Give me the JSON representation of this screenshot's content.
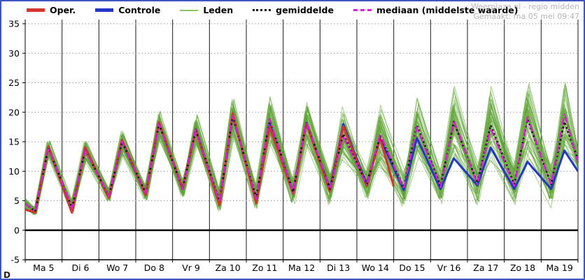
{
  "header": {
    "source": "Weerplaza.nl - regio midden",
    "generated": "Gemaakt: ma 05 mei 09:47"
  },
  "footer": {
    "cropped": "D"
  },
  "legend": [
    {
      "label": "Oper.",
      "color": "#d5352f",
      "style": "solid-thick"
    },
    {
      "label": "Controle",
      "color": "#2236c9",
      "style": "solid-thick"
    },
    {
      "label": "Leden",
      "color": "#8cc063",
      "style": "solid-thin"
    },
    {
      "label": "gemiddelde",
      "color": "#111111",
      "style": "dotted"
    },
    {
      "label": "mediaan (middelste waarde)",
      "color": "#e515e5",
      "style": "dash-dot"
    }
  ],
  "chart_data": {
    "type": "line",
    "title": "",
    "xlabel": "",
    "ylabel": "",
    "x_days": 15,
    "x_categories": [
      "Ma 5",
      "Di 6",
      "Wo 7",
      "Do 8",
      "Vr 9",
      "Za 10",
      "Zo 11",
      "Ma 12",
      "Di 13",
      "Wo 14",
      "Do 15",
      "Vr 16",
      "Za 17",
      "Zo 18",
      "Ma 19"
    ],
    "ylim": [
      -5,
      35
    ],
    "yticks": [
      -5,
      0,
      5,
      10,
      15,
      20,
      25,
      30,
      35
    ],
    "zero_line": {
      "value": 0,
      "color": "#000000",
      "width": 2.5
    },
    "series": [
      {
        "name": "Controle",
        "key": "controle",
        "color": "#2236c9",
        "width": 3,
        "dash": "",
        "start": 3.5,
        "mins": [
          3.0,
          3.0,
          5.5,
          6.0,
          7.0,
          4.4,
          4.8,
          6.3,
          7.0,
          7.8,
          6.8,
          7.0,
          7.6,
          7.0,
          7.0
        ],
        "maxs": [
          14.1,
          14.0,
          15.1,
          18.2,
          17.1,
          19.6,
          18.2,
          18.2,
          18.0,
          15.6,
          15.6,
          12.2,
          14.0,
          11.6,
          13.5
        ],
        "end": 10.0
      },
      {
        "name": "Oper.",
        "key": "oper",
        "color": "#d5352f",
        "width": 3.2,
        "dash": "",
        "start": 3.5,
        "mins": [
          3.0,
          3.0,
          5.5,
          6.0,
          7.0,
          4.3,
          4.6,
          6.2,
          6.6,
          7.5
        ],
        "maxs": [
          14.2,
          14.0,
          15.3,
          18.3,
          17.0,
          19.8,
          17.6,
          18.1,
          17.6,
          15.6
        ],
        "end": 7.5
      },
      {
        "name": "gemiddelde",
        "key": "gemiddelde",
        "color": "#111111",
        "width": 2.6,
        "dash": "2.5,3.5",
        "start": 4.5,
        "mins": [
          3.2,
          3.8,
          5.8,
          6.3,
          7.0,
          5.0,
          5.5,
          6.5,
          7.0,
          7.8,
          7.2,
          7.5,
          8.0,
          7.8,
          7.8
        ],
        "maxs": [
          14.0,
          13.6,
          15.0,
          18.0,
          17.0,
          19.3,
          18.8,
          18.3,
          16.3,
          16.0,
          17.8,
          18.4,
          17.8,
          18.8,
          18.4
        ],
        "end": 12.0
      },
      {
        "name": "mediaan (middelste waarde)",
        "key": "mediaan",
        "color": "#e515e5",
        "width": 2.4,
        "dash": "10,4,2,4",
        "start": 4.5,
        "mins": [
          3.2,
          3.8,
          5.8,
          6.3,
          7.0,
          4.8,
          5.3,
          6.4,
          7.0,
          7.6,
          7.0,
          7.3,
          7.8,
          7.5,
          7.6
        ],
        "maxs": [
          14.0,
          13.6,
          15.0,
          18.0,
          17.0,
          19.4,
          18.9,
          18.4,
          16.0,
          16.3,
          17.5,
          18.6,
          17.3,
          19.2,
          19.8
        ],
        "end": 11.5
      }
    ],
    "ensemble": {
      "name": "Leden",
      "count": 50,
      "color": "#5da433",
      "opacity": 0.5,
      "base": "gemiddelde",
      "seed": 7,
      "spread_min_start": 0.6,
      "spread_min_growth": 0.16,
      "spread_max_start": 1.2,
      "spread_max_growth": 0.3
    }
  }
}
